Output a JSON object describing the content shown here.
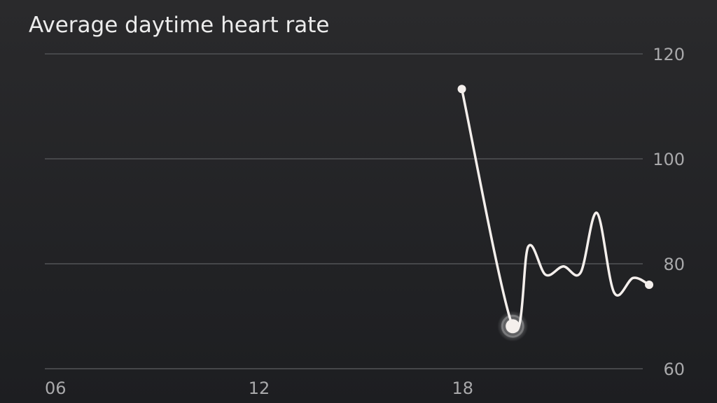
{
  "chart_data": {
    "type": "line",
    "title": "Average daytime heart rate",
    "x": [
      18.29,
      19.79,
      20.25,
      20.76,
      21.28,
      21.79,
      22.27,
      22.78,
      23.34,
      23.81
    ],
    "series": [
      {
        "color": "#f4efec",
        "values": [
          113.3,
          68.1,
          83.3,
          77.9,
          79.5,
          78.3,
          89.7,
          74.5,
          77.3,
          76.0
        ]
      }
    ],
    "xlim": [
      6,
      24.8
    ],
    "xticks": [
      {
        "value": 6,
        "label": "06"
      },
      {
        "value": 12,
        "label": "12"
      },
      {
        "value": 18,
        "label": "18"
      }
    ],
    "ylim": [
      60,
      120
    ],
    "yticks": [
      60,
      80,
      100,
      120
    ],
    "grid": true
  }
}
